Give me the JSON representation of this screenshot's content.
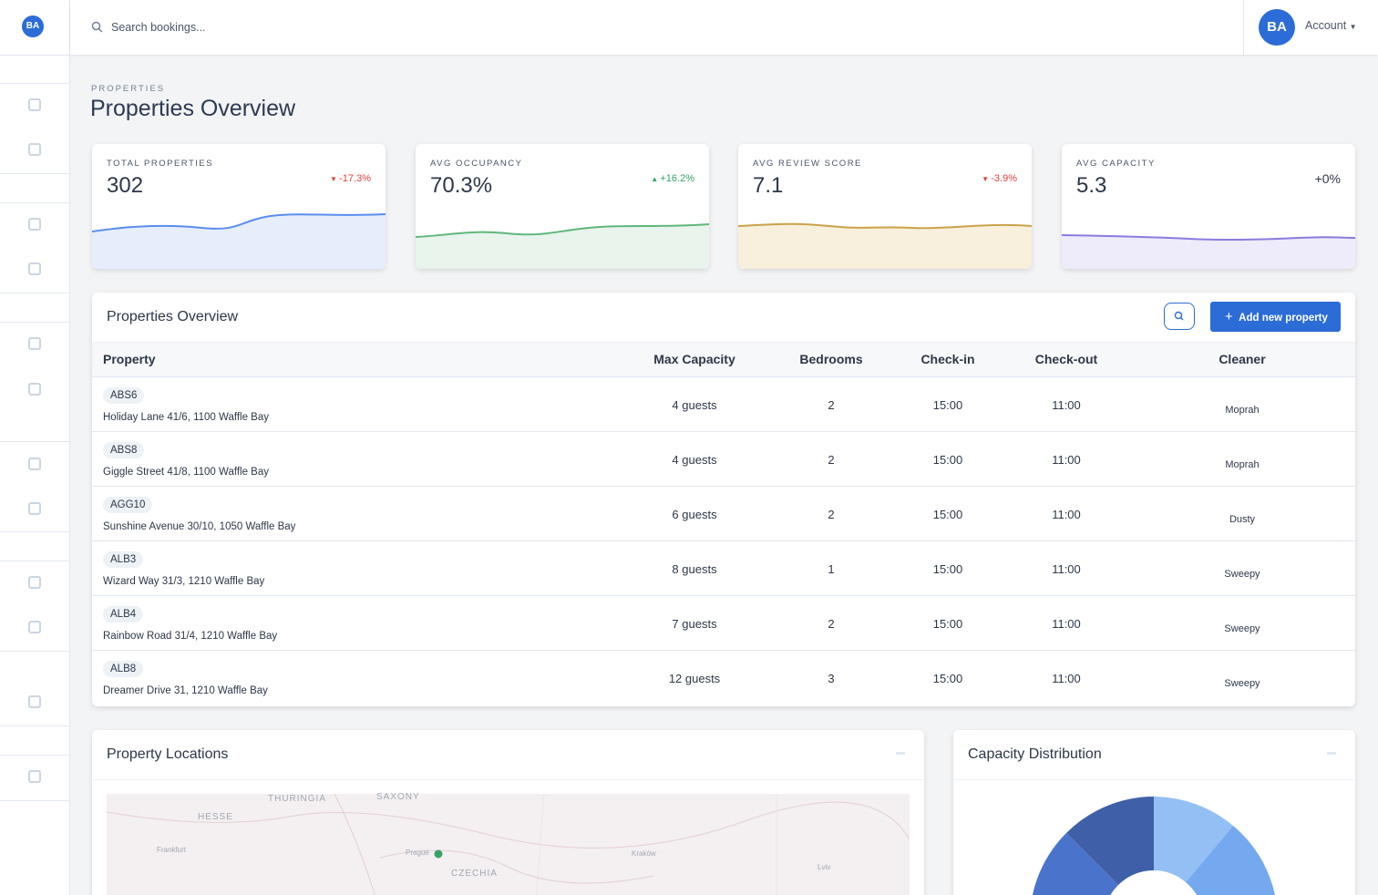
{
  "logo": "BA",
  "search_placeholder": "Search bookings...",
  "account": "Account",
  "breadcrumb": "PROPERTIES",
  "page_title": "Properties Overview",
  "kpis": [
    {
      "label": "TOTAL PROPERTIES",
      "value": "302",
      "change": "-17.3%",
      "trend": "down"
    },
    {
      "label": "AVG OCCUPANCY",
      "value": "70.3%",
      "change": "+16.2%",
      "trend": "up"
    },
    {
      "label": "AVG REVIEW SCORE",
      "value": "7.1",
      "change": "-3.9%",
      "trend": "down"
    },
    {
      "label": "AVG CAPACITY",
      "value": "5.3",
      "change": "+0%",
      "trend": "flat"
    }
  ],
  "table": {
    "title": "Properties Overview",
    "add_button": "Add new property",
    "columns": [
      "Property",
      "Max Capacity",
      "Bedrooms",
      "Check-in",
      "Check-out",
      "Cleaner"
    ],
    "rows": [
      {
        "code": "ABS6",
        "address": "Holiday Lane 41/6, 1100 Waffle Bay",
        "capacity": "4 guests",
        "bedrooms": "2",
        "check_in": "15:00",
        "check_out": "11:00",
        "cleaner": "Moprah"
      },
      {
        "code": "ABS8",
        "address": "Giggle Street 41/8, 1100 Waffle Bay",
        "capacity": "4 guests",
        "bedrooms": "2",
        "check_in": "15:00",
        "check_out": "11:00",
        "cleaner": "Moprah"
      },
      {
        "code": "AGG10",
        "address": "Sunshine Avenue 30/10, 1050 Waffle Bay",
        "capacity": "6 guests",
        "bedrooms": "2",
        "check_in": "15:00",
        "check_out": "11:00",
        "cleaner": "Dusty"
      },
      {
        "code": "ALB3",
        "address": "Wizard Way 31/3, 1210 Waffle Bay",
        "capacity": "8 guests",
        "bedrooms": "1",
        "check_in": "15:00",
        "check_out": "11:00",
        "cleaner": "Sweepy"
      },
      {
        "code": "ALB4",
        "address": "Rainbow Road 31/4, 1210 Waffle Bay",
        "capacity": "7 guests",
        "bedrooms": "2",
        "check_in": "15:00",
        "check_out": "11:00",
        "cleaner": "Sweepy"
      },
      {
        "code": "ALB8",
        "address": "Dreamer Drive 31, 1210 Waffle Bay",
        "capacity": "12 guests",
        "bedrooms": "3",
        "check_in": "15:00",
        "check_out": "11:00",
        "cleaner": "Sweepy"
      }
    ]
  },
  "map": {
    "title": "Property Locations",
    "labels": [
      "THURINGIA",
      "SAXONY",
      "HESSE",
      "Frankfurt",
      "Prague",
      "CZECHIA",
      "Kraków",
      "Lviv"
    ]
  },
  "capacity_chart": {
    "title": "Capacity Distribution"
  }
}
